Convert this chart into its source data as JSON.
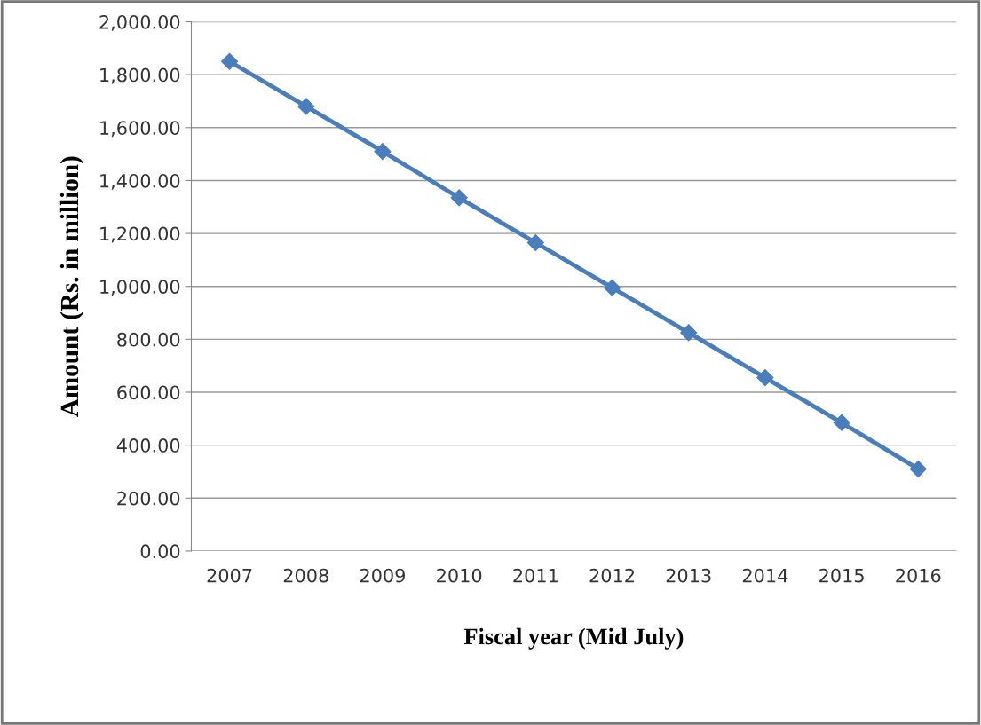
{
  "chart_data": {
    "type": "line",
    "xlabel": "Fiscal year (Mid July)",
    "ylabel": "Amount (Rs. in million)",
    "categories": [
      "2007",
      "2008",
      "2009",
      "2010",
      "2011",
      "2012",
      "2013",
      "2014",
      "2015",
      "2016"
    ],
    "series": [
      {
        "color": "#4a7ebb",
        "values": [
          1850,
          1680,
          1510,
          1335,
          1165,
          995,
          825,
          655,
          485,
          310
        ]
      }
    ],
    "ylim": [
      0,
      2000
    ],
    "yticks": [
      {
        "value": 0,
        "label": "0.00"
      },
      {
        "value": 200,
        "label": "200.00"
      },
      {
        "value": 400,
        "label": "400.00"
      },
      {
        "value": 600,
        "label": "600.00"
      },
      {
        "value": 800,
        "label": "800.00"
      },
      {
        "value": 1000,
        "label": "1,000.00"
      },
      {
        "value": 1200,
        "label": "1,200.00"
      },
      {
        "value": 1400,
        "label": "1,400.00"
      },
      {
        "value": 1600,
        "label": "1,600.00"
      },
      {
        "value": 1800,
        "label": "1,800.00"
      },
      {
        "value": 2000,
        "label": "2,000.00"
      }
    ],
    "grid": "y",
    "marker": "diamond",
    "line_style": "solid",
    "legend": false
  }
}
